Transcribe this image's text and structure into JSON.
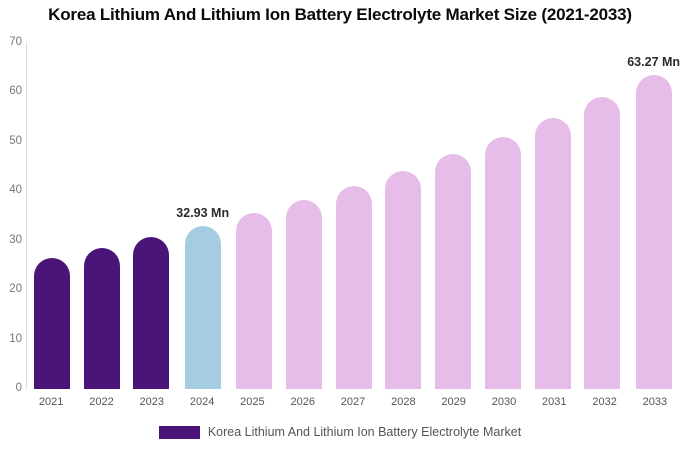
{
  "title": "Korea Lithium And Lithium Ion Battery Electrolyte Market Size (2021-2033)",
  "legend": {
    "label": "Korea Lithium And Lithium Ion Battery Electrolyte Market"
  },
  "colors": {
    "historical_bar": "#4B1478",
    "base_year_bar": "#A5CCE0",
    "forecast_bar": "#E5BDE8",
    "axis_line": "#DDDDDD",
    "y_tick_text": "#777777",
    "x_tick_text": "#555555",
    "data_label_text": "#2B2B2B",
    "title_text": "#0A0A0A",
    "legend_text": "#555555",
    "legend_swatch": "#4B1478",
    "background": "#FFFFFF"
  },
  "chart_data": {
    "type": "bar",
    "title": "Korea Lithium And Lithium Ion Battery Electrolyte Market Size (2021-2033)",
    "unit": "Mn",
    "xlabel": "",
    "ylabel": "",
    "ylim": [
      0,
      70
    ],
    "yticks": [
      0,
      10,
      20,
      30,
      40,
      50,
      60,
      70
    ],
    "grid": false,
    "legend_position": "bottom",
    "categories": [
      "2021",
      "2022",
      "2023",
      "2024",
      "2025",
      "2026",
      "2027",
      "2028",
      "2029",
      "2030",
      "2031",
      "2032",
      "2033"
    ],
    "values": [
      26.49,
      28.48,
      30.63,
      32.93,
      35.41,
      38.07,
      40.94,
      44.02,
      47.33,
      50.89,
      54.72,
      58.84,
      63.27
    ],
    "segments": [
      "historical",
      "historical",
      "historical",
      "base_year",
      "forecast",
      "forecast",
      "forecast",
      "forecast",
      "forecast",
      "forecast",
      "forecast",
      "forecast",
      "forecast"
    ],
    "point_labels": {
      "2024": "32.93 Mn",
      "2033": "63.27 Mn"
    }
  }
}
